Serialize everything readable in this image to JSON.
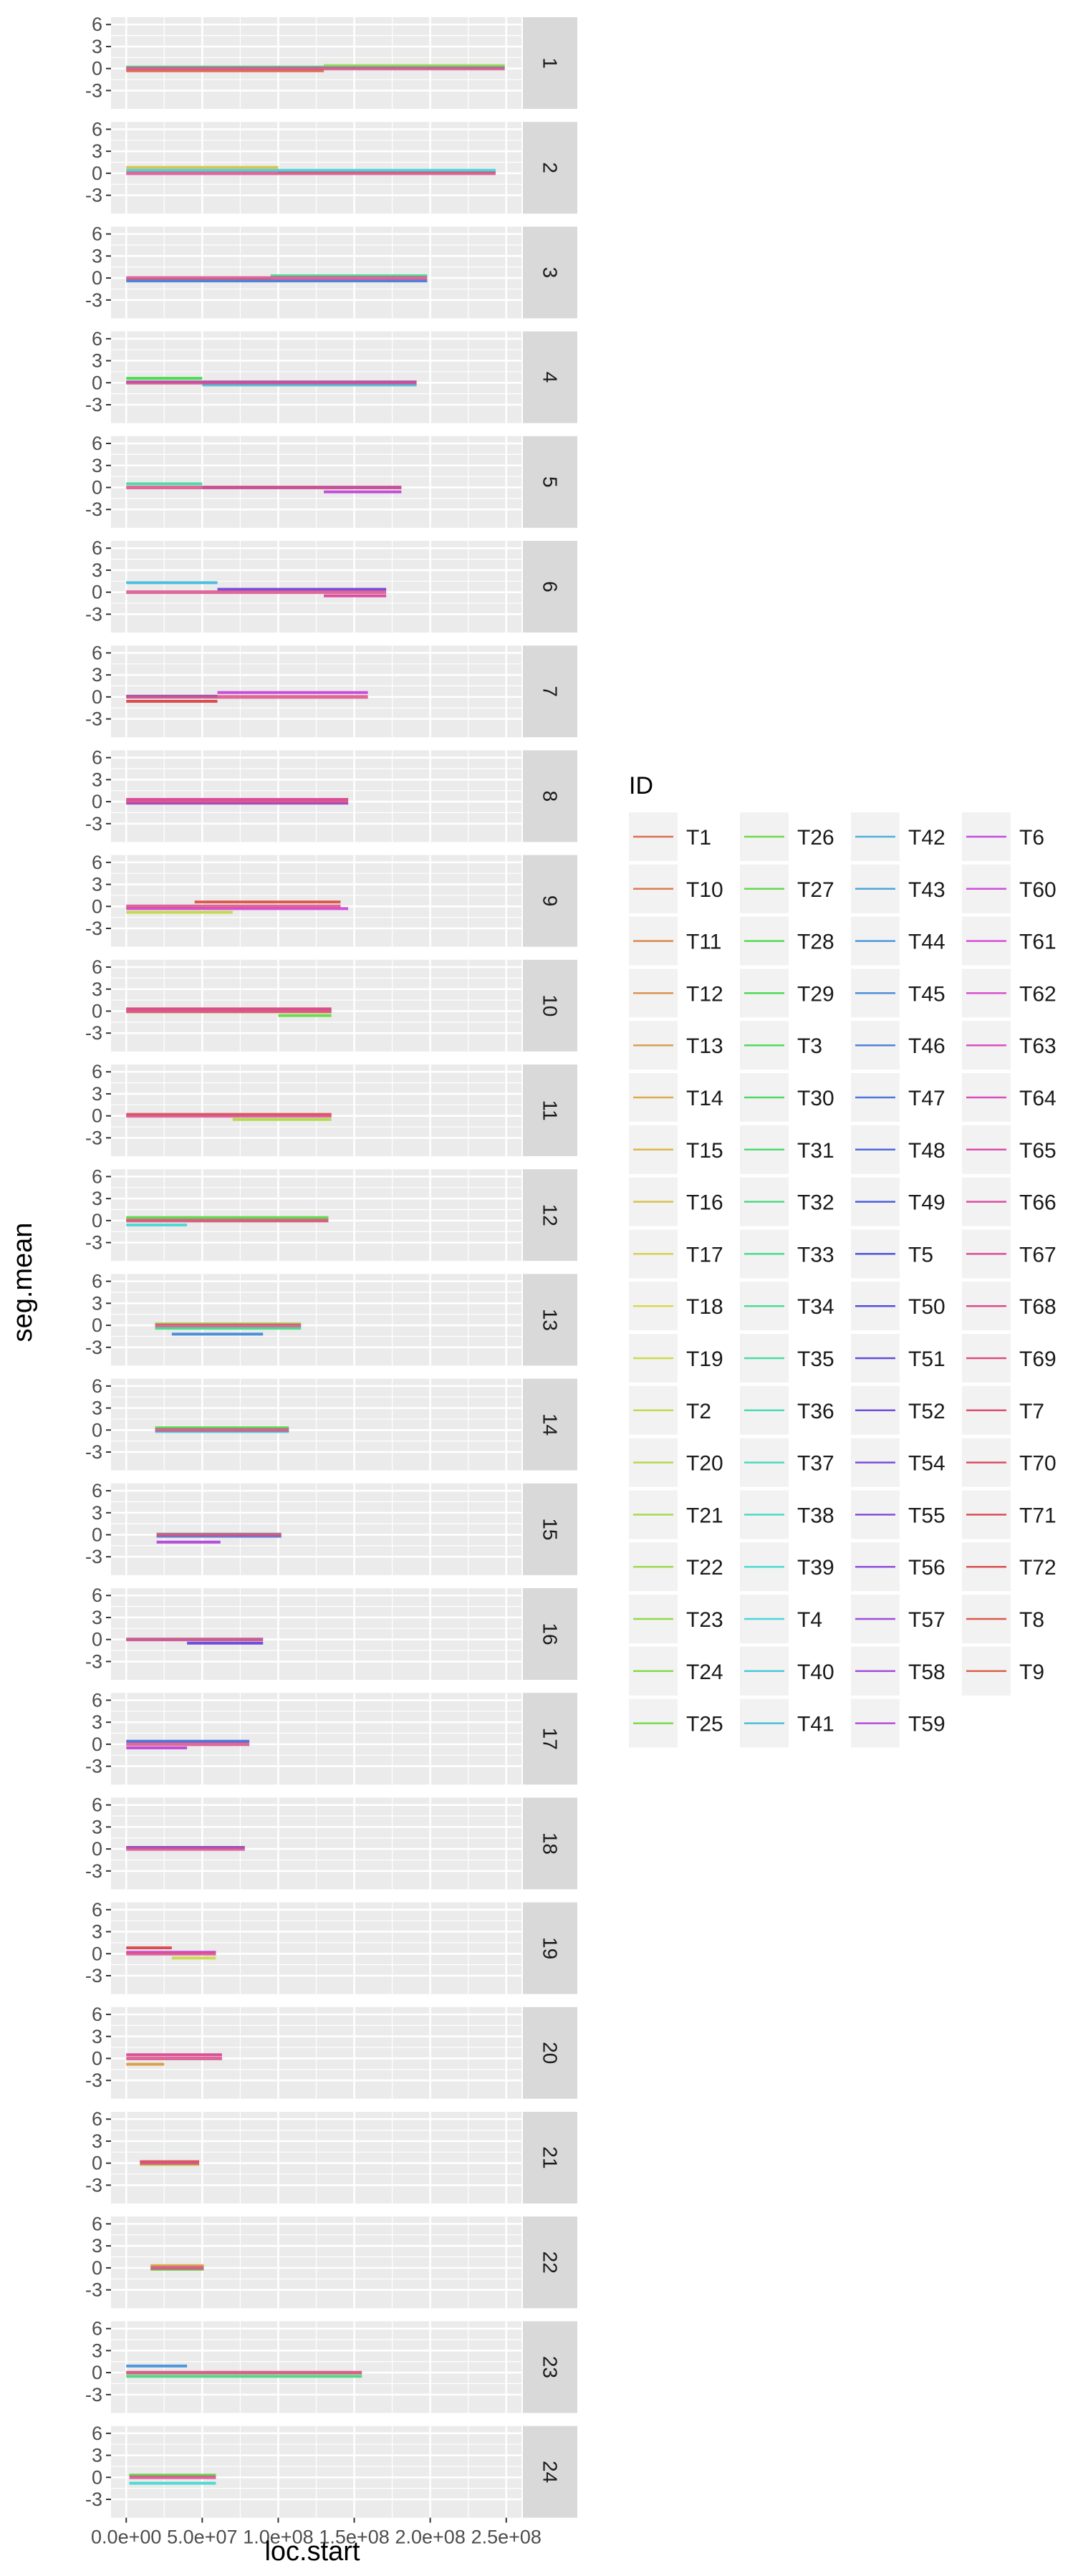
{
  "chart_data": {
    "type": "line",
    "title": "",
    "xlabel": "loc.start",
    "ylabel": "seg.mean",
    "xlim": [
      -10000000,
      260000000
    ],
    "ylim": [
      -5.5,
      7
    ],
    "x_ticks": [
      0,
      50000000,
      100000000,
      150000000,
      200000000,
      250000000
    ],
    "x_tick_labels": [
      "0.0e+00",
      "5.0e+07",
      "1.0e+08",
      "1.5e+08",
      "2.0e+08",
      "2.5e+08"
    ],
    "y_ticks": [
      -3,
      0,
      3,
      6
    ],
    "y_tick_labels": [
      "-3",
      "0",
      "3",
      "6"
    ],
    "grid": true,
    "facets": {
      "labels": [
        "1",
        "2",
        "3",
        "4",
        "5",
        "6",
        "7",
        "8",
        "9",
        "10",
        "11",
        "12",
        "13",
        "14",
        "15",
        "16",
        "17",
        "18",
        "19",
        "20",
        "21",
        "22",
        "23",
        "24"
      ],
      "chrom_extent": [
        [
          0,
          249000000
        ],
        [
          0,
          243000000
        ],
        [
          0,
          198000000
        ],
        [
          0,
          191000000
        ],
        [
          0,
          181000000
        ],
        [
          0,
          171000000
        ],
        [
          0,
          159000000
        ],
        [
          0,
          146000000
        ],
        [
          0,
          141000000
        ],
        [
          0,
          135000000
        ],
        [
          0,
          135000000
        ],
        [
          0,
          133000000
        ],
        [
          19000000,
          115000000
        ],
        [
          19000000,
          107000000
        ],
        [
          20000000,
          102000000
        ],
        [
          0,
          90000000
        ],
        [
          0,
          81000000
        ],
        [
          0,
          78000000
        ],
        [
          0,
          59000000
        ],
        [
          0,
          63000000
        ],
        [
          9000000,
          48000000
        ],
        [
          16000000,
          51000000
        ],
        [
          0,
          155000000
        ],
        [
          2000000,
          59000000
        ]
      ],
      "summary_segments": [
        [
          [
            0,
            130000000,
            -0.3
          ],
          [
            130000000,
            249000000,
            0.4
          ],
          [
            0,
            249000000,
            0.2
          ]
        ],
        [
          [
            0,
            100000000,
            0.8
          ],
          [
            100000000,
            243000000,
            0.2
          ],
          [
            0,
            243000000,
            0.4
          ]
        ],
        [
          [
            0,
            95000000,
            -0.2
          ],
          [
            95000000,
            198000000,
            0.3
          ],
          [
            0,
            198000000,
            -0.4
          ]
        ],
        [
          [
            0,
            50000000,
            0.6
          ],
          [
            50000000,
            191000000,
            -0.3
          ],
          [
            0,
            191000000,
            0.1
          ]
        ],
        [
          [
            0,
            50000000,
            0.5
          ],
          [
            50000000,
            181000000,
            0.0
          ],
          [
            130000000,
            181000000,
            -0.6
          ]
        ],
        [
          [
            0,
            60000000,
            1.3
          ],
          [
            60000000,
            171000000,
            0.4
          ],
          [
            130000000,
            171000000,
            -0.5
          ]
        ],
        [
          [
            0,
            60000000,
            0.1
          ],
          [
            60000000,
            159000000,
            0.6
          ],
          [
            0,
            60000000,
            -0.6
          ]
        ],
        [
          [
            0,
            146000000,
            -0.2
          ],
          [
            0,
            146000000,
            0.3
          ]
        ],
        [
          [
            0,
            146000000,
            -0.3
          ],
          [
            45000000,
            141000000,
            0.6
          ],
          [
            0,
            70000000,
            -0.8
          ]
        ],
        [
          [
            0,
            135000000,
            0.3
          ],
          [
            0,
            135000000,
            -0.1
          ],
          [
            100000000,
            135000000,
            -0.6
          ]
        ],
        [
          [
            0,
            135000000,
            0.2
          ],
          [
            70000000,
            135000000,
            -0.5
          ]
        ],
        [
          [
            0,
            133000000,
            0.0
          ],
          [
            0,
            133000000,
            0.4
          ],
          [
            0,
            40000000,
            -0.6
          ]
        ],
        [
          [
            19000000,
            115000000,
            0.2
          ],
          [
            19000000,
            115000000,
            -0.4
          ],
          [
            30000000,
            90000000,
            -1.2
          ]
        ],
        [
          [
            19000000,
            107000000,
            0.3
          ],
          [
            19000000,
            107000000,
            -0.2
          ]
        ],
        [
          [
            20000000,
            102000000,
            0.1
          ],
          [
            20000000,
            102000000,
            -0.2
          ],
          [
            20000000,
            62000000,
            -1.0
          ]
        ],
        [
          [
            0,
            90000000,
            0.0
          ],
          [
            40000000,
            90000000,
            -0.5
          ]
        ],
        [
          [
            0,
            81000000,
            0.4
          ],
          [
            0,
            40000000,
            -0.5
          ]
        ],
        [
          [
            0,
            78000000,
            0.2
          ]
        ],
        [
          [
            0,
            59000000,
            0.2
          ],
          [
            0,
            30000000,
            0.8
          ],
          [
            30000000,
            59000000,
            -0.6
          ]
        ],
        [
          [
            0,
            63000000,
            0.5
          ],
          [
            0,
            25000000,
            -0.8
          ]
        ],
        [
          [
            9000000,
            48000000,
            0.2
          ],
          [
            9000000,
            48000000,
            -0.2
          ]
        ],
        [
          [
            16000000,
            51000000,
            0.3
          ],
          [
            16000000,
            51000000,
            -0.2
          ]
        ],
        [
          [
            0,
            155000000,
            0.0
          ],
          [
            0,
            155000000,
            -0.5
          ],
          [
            0,
            40000000,
            0.9
          ]
        ],
        [
          [
            2000000,
            59000000,
            0.3
          ],
          [
            2000000,
            59000000,
            -0.8
          ]
        ]
      ]
    },
    "legend": {
      "title": "ID",
      "placement": "right",
      "columns": [
        [
          "T1",
          "T10",
          "T11",
          "T12",
          "T13",
          "T14",
          "T15",
          "T16",
          "T17",
          "T18",
          "T19",
          "T2",
          "T20",
          "T21",
          "T22",
          "T23",
          "T24",
          "T25"
        ],
        [
          "T26",
          "T27",
          "T28",
          "T29",
          "T3",
          "T30",
          "T31",
          "T32",
          "T33",
          "T34",
          "T35",
          "T36",
          "T37",
          "T38",
          "T39",
          "T4",
          "T40",
          "T41"
        ],
        [
          "T42",
          "T43",
          "T44",
          "T45",
          "T46",
          "T47",
          "T48",
          "T49",
          "T5",
          "T50",
          "T51",
          "T52",
          "T54",
          "T55",
          "T56",
          "T57",
          "T58",
          "T59"
        ],
        [
          "T6",
          "T60",
          "T61",
          "T62",
          "T63",
          "T64",
          "T65",
          "T66",
          "T67",
          "T68",
          "T69",
          "T7",
          "T70",
          "T71",
          "T72",
          "T8",
          "T9"
        ]
      ]
    },
    "colors": {
      "panel_bg": "#ebebeb",
      "grid": "#ffffff",
      "strip_bg": "#d9d9d9",
      "tick_text": "#4d4d4d",
      "axis_title": "#000000",
      "hue_start": 15,
      "chroma_note": "ggplot2 default hue palette"
    }
  }
}
